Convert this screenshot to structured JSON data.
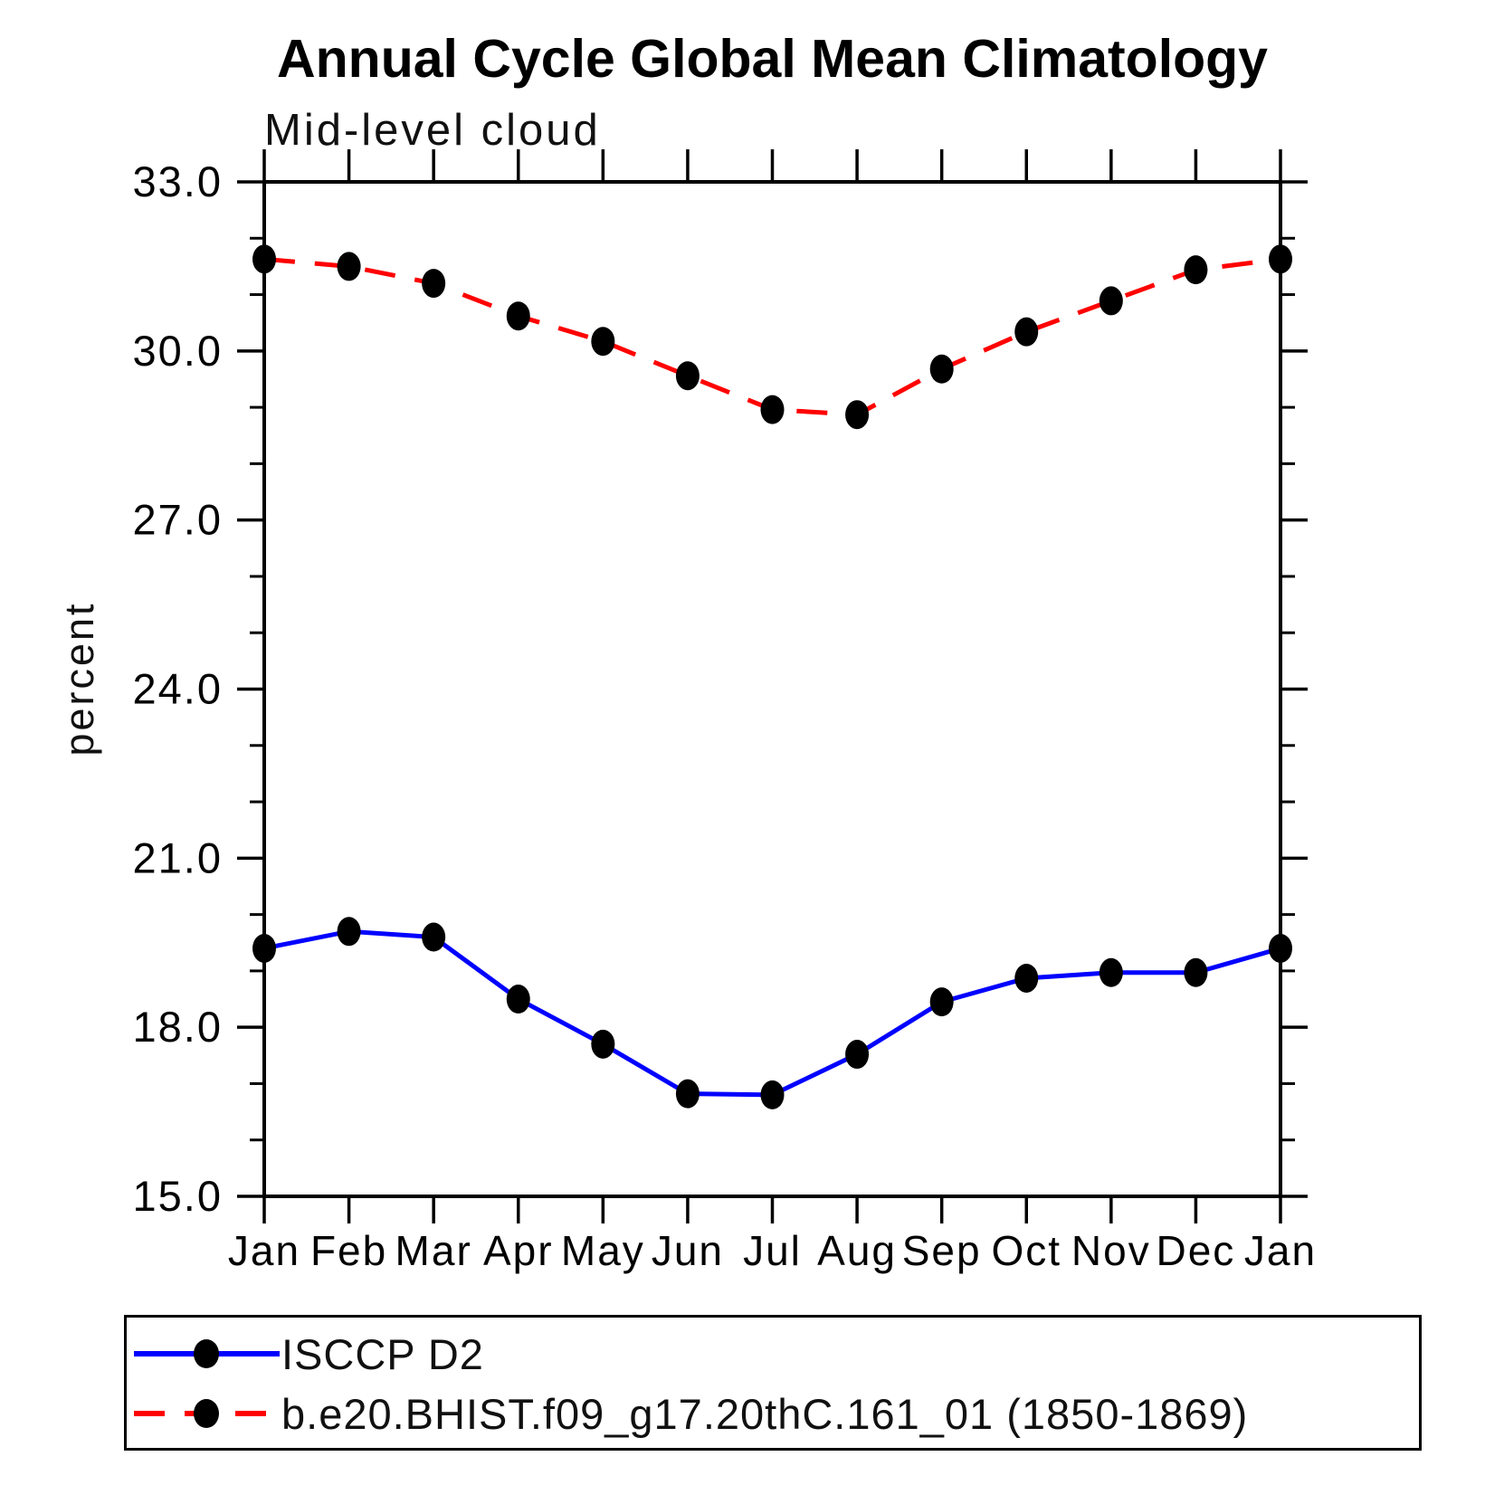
{
  "chart_data": {
    "type": "line",
    "title": "Annual Cycle Global Mean Climatology",
    "subtitle": "Mid-level cloud",
    "ylabel": "percent",
    "xlabel": "",
    "categories": [
      "Jan",
      "Feb",
      "Mar",
      "Apr",
      "May",
      "Jun",
      "Jul",
      "Aug",
      "Sep",
      "Oct",
      "Nov",
      "Dec",
      "Jan"
    ],
    "ylim": [
      15.0,
      33.0
    ],
    "yticks": [
      15.0,
      18.0,
      21.0,
      24.0,
      27.0,
      30.0,
      33.0
    ],
    "ytick_labels": [
      "15.0",
      "18.0",
      "21.0",
      "24.0",
      "27.0",
      "30.0",
      "33.0"
    ],
    "minor_tick_interval": 1.0,
    "grid": false,
    "legend_position": "bottom-box",
    "axis_color": "#000000",
    "marker": "filled-circle",
    "marker_color": "#000000",
    "series": [
      {
        "name": "ISCCP D2",
        "color": "#0000ff",
        "style": "solid",
        "values": [
          19.4,
          19.7,
          19.6,
          18.5,
          17.7,
          16.82,
          16.8,
          17.52,
          18.45,
          18.87,
          18.97,
          18.97,
          19.4
        ]
      },
      {
        "name": "b.e20.BHIST.f09_g17.20thC.161_01 (1850-1869)",
        "color": "#ff0000",
        "style": "dashed",
        "values": [
          31.63,
          31.5,
          31.2,
          30.62,
          30.17,
          29.56,
          28.96,
          28.87,
          29.68,
          30.34,
          30.89,
          31.44,
          31.63
        ]
      }
    ]
  }
}
